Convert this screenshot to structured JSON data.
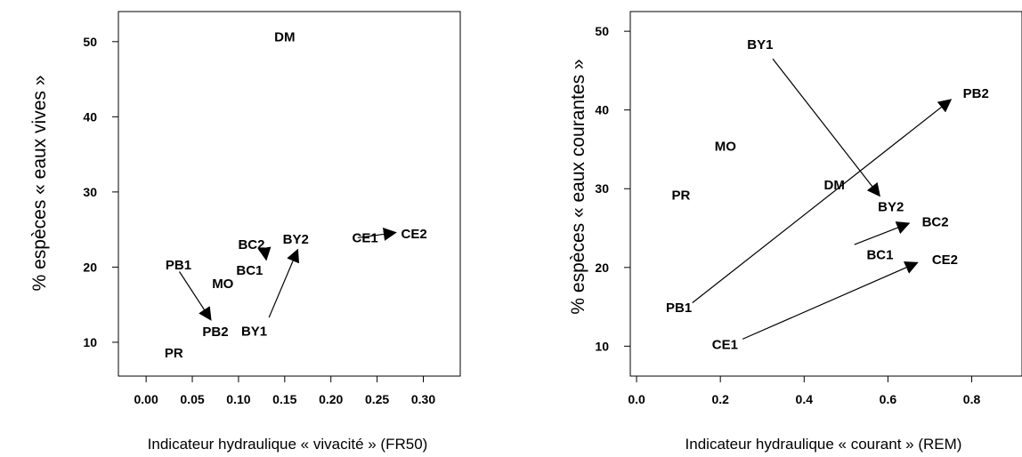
{
  "chart_data": [
    {
      "type": "scatter",
      "xlabel": "Indicateur hydraulique « vivacité » (FR50)",
      "ylabel": "% espèces « eaux vives »",
      "xticks": [
        "0.00",
        "0.05",
        "0.10",
        "0.15",
        "0.20",
        "0.25",
        "0.30"
      ],
      "yticks": [
        "10",
        "20",
        "30",
        "40",
        "50"
      ],
      "xlim": [
        -0.03,
        0.34
      ],
      "ylim": [
        5.5,
        54
      ],
      "grid": false,
      "points": [
        {
          "label": "DM",
          "x": 0.15,
          "y": 50.6
        },
        {
          "label": "PB1",
          "x": 0.035,
          "y": 20.3
        },
        {
          "label": "PB2",
          "x": 0.075,
          "y": 11.4
        },
        {
          "label": "PR",
          "x": 0.03,
          "y": 8.6
        },
        {
          "label": "MO",
          "x": 0.083,
          "y": 17.8
        },
        {
          "label": "BC1",
          "x": 0.112,
          "y": 19.6
        },
        {
          "label": "BC2",
          "x": 0.114,
          "y": 23.0
        },
        {
          "label": "BY1",
          "x": 0.117,
          "y": 11.5
        },
        {
          "label": "BY2",
          "x": 0.162,
          "y": 23.7
        },
        {
          "label": "CE1",
          "x": 0.237,
          "y": 23.9
        },
        {
          "label": "CE2",
          "x": 0.29,
          "y": 24.4
        }
      ],
      "arrows": [
        {
          "from": "PB1",
          "to": "PB2",
          "x0": 0.036,
          "y0": 19.4,
          "x1": 0.07,
          "y1": 13.0
        },
        {
          "from": "BC2",
          "to": "BC1",
          "x0": 0.128,
          "y0": 22.6,
          "x1": 0.13,
          "y1": 21.0
        },
        {
          "from": "BY1",
          "to": "BY2",
          "x0": 0.133,
          "y0": 13.3,
          "x1": 0.164,
          "y1": 22.3
        },
        {
          "from": "CE1",
          "to": "CE2",
          "x0": 0.229,
          "y0": 23.9,
          "x1": 0.27,
          "y1": 24.6
        }
      ]
    },
    {
      "type": "scatter",
      "xlabel": "Indicateur hydraulique « courant » (REM)",
      "ylabel": "% espèces « eaux courantes »",
      "xticks": [
        "0.0",
        "0.2",
        "0.4",
        "0.6",
        "0.8"
      ],
      "yticks": [
        "10",
        "20",
        "30",
        "40",
        "50"
      ],
      "xlim": [
        -0.015,
        0.92
      ],
      "ylim": [
        6.2,
        52.5
      ],
      "grid": false,
      "points": [
        {
          "label": "BY1",
          "x": 0.295,
          "y": 48.3
        },
        {
          "label": "PB2",
          "x": 0.81,
          "y": 42.1
        },
        {
          "label": "MO",
          "x": 0.212,
          "y": 35.4
        },
        {
          "label": "PR",
          "x": 0.106,
          "y": 29.2
        },
        {
          "label": "DM",
          "x": 0.472,
          "y": 30.5
        },
        {
          "label": "BY2",
          "x": 0.607,
          "y": 27.7
        },
        {
          "label": "BC2",
          "x": 0.713,
          "y": 25.8
        },
        {
          "label": "BC1",
          "x": 0.581,
          "y": 21.6
        },
        {
          "label": "CE2",
          "x": 0.736,
          "y": 21.0
        },
        {
          "label": "PB1",
          "x": 0.101,
          "y": 14.9
        },
        {
          "label": "CE1",
          "x": 0.211,
          "y": 10.2
        }
      ],
      "arrows": [
        {
          "from": "BY1",
          "to": "BY2",
          "x0": 0.325,
          "y0": 46.5,
          "x1": 0.58,
          "y1": 29.1
        },
        {
          "from": "PB1",
          "to": "PB2",
          "x0": 0.133,
          "y0": 15.5,
          "x1": 0.75,
          "y1": 41.3
        },
        {
          "from": "BC1",
          "to": "BC2",
          "x0": 0.52,
          "y0": 22.9,
          "x1": 0.65,
          "y1": 25.6
        },
        {
          "from": "CE1",
          "to": "CE2",
          "x0": 0.253,
          "y0": 10.9,
          "x1": 0.67,
          "y1": 20.6
        }
      ]
    }
  ]
}
